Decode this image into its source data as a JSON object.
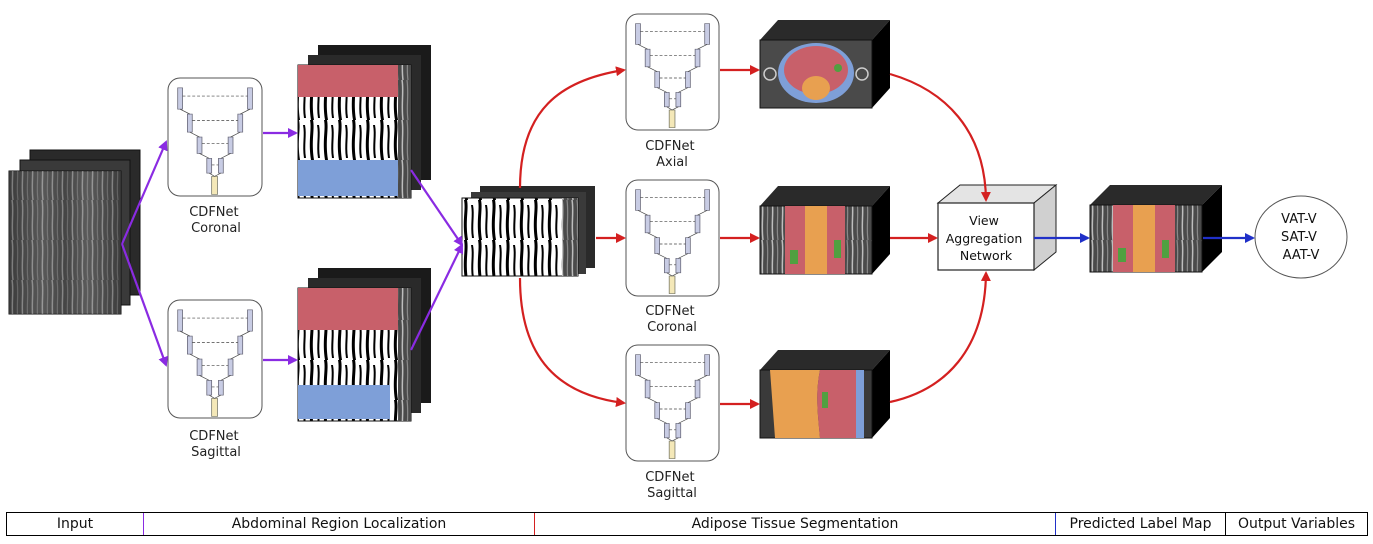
{
  "colors": {
    "localization_arrow": "#8a2be2",
    "segmentation_arrow": "#d42020",
    "prediction_arrow": "#2030c8",
    "label_red": "#c8606a",
    "label_blue": "#7e9fd8",
    "label_orange": "#e8a050",
    "label_green": "#50a040"
  },
  "networks": {
    "localization_coronal": [
      "CDFNet",
      "Coronal"
    ],
    "localization_sagittal": [
      "CDFNet",
      "Sagittal"
    ],
    "segmentation_axial": [
      "CDFNet",
      "Axial"
    ],
    "segmentation_coronal": [
      "CDFNet",
      "Coronal"
    ],
    "segmentation_sagittal": [
      "CDFNet",
      "Sagittal"
    ]
  },
  "aggregation": [
    "View",
    "Aggregation",
    "Network"
  ],
  "outputs": [
    "VAT-V",
    "SAT-V",
    "AAT-V"
  ],
  "stages": {
    "input": "Input",
    "localization": "Abdominal Region Localization",
    "segmentation": "Adipose Tissue Segmentation",
    "predicted": "Predicted Label Map",
    "output": "Output Variables"
  }
}
